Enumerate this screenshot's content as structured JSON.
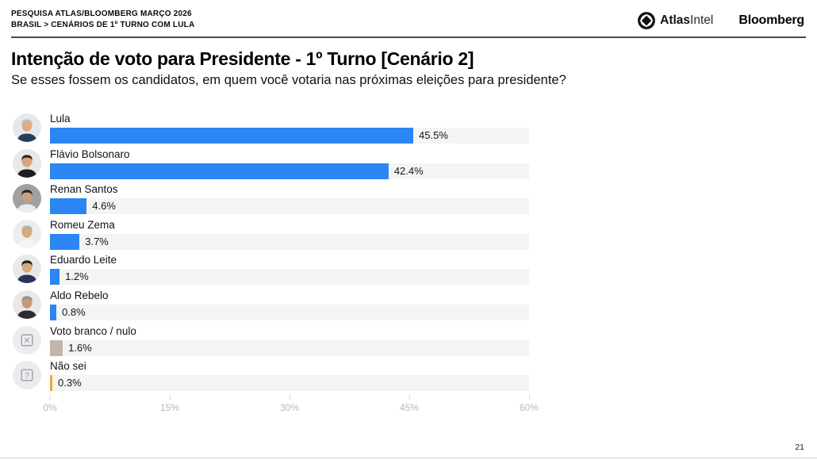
{
  "header": {
    "kicker_line1": "PESQUISA ATLAS/BLOOMBERG MARÇO 2026",
    "kicker_line2": "BRASIL > CENÁRIOS DE 1º TURNO COM LULA",
    "atlas_logo": {
      "bold": "Atlas",
      "light": "Intel"
    },
    "bloomberg_logo": "Bloomberg"
  },
  "title": "Intenção de voto para Presidente - 1º Turno [Cenário 2]",
  "subtitle": "Se esses fossem os candidatos, em quem você votaria nas próximas eleições para presidente?",
  "footer": {
    "page_number": "21"
  },
  "colors": {
    "bar_blue": "#2b86f3",
    "bar_tan": "#c4b5aa",
    "bar_orange": "#eba832",
    "track_gray": "#f4f4f2",
    "axis_text": "#b5b9c1"
  },
  "chart_data": {
    "type": "bar",
    "orientation": "horizontal",
    "title": "Intenção de voto para Presidente - 1º Turno [Cenário 2]",
    "xlabel": "",
    "ylabel": "",
    "xlim": [
      0,
      60
    ],
    "x_ticks": [
      {
        "value": 0,
        "label": "0%"
      },
      {
        "value": 15,
        "label": "15%"
      },
      {
        "value": 30,
        "label": "30%"
      },
      {
        "value": 45,
        "label": "45%"
      },
      {
        "value": 60,
        "label": "60%"
      }
    ],
    "categories": [
      "Lula",
      "Flávio Bolsonaro",
      "Renan Santos",
      "Romeu Zema",
      "Eduardo Leite",
      "Aldo Rebelo",
      "Voto branco / nulo",
      "Não sei"
    ],
    "values": [
      45.5,
      42.4,
      4.6,
      3.7,
      1.2,
      0.8,
      1.6,
      0.3
    ],
    "rows": [
      {
        "label": "Lula",
        "value": 45.5,
        "value_label": "45.5%",
        "color": "#2b86f3",
        "avatar": {
          "kind": "photo",
          "name": "lula-photo",
          "bg": "#e8e8e8",
          "hair": "#bdbdbd",
          "skin": "#e0ab87",
          "suit": "#21405f"
        }
      },
      {
        "label": "Flávio Bolsonaro",
        "value": 42.4,
        "value_label": "42.4%",
        "color": "#2b86f3",
        "avatar": {
          "kind": "photo",
          "name": "flavio-bolsonaro-photo",
          "bg": "#e8e8e8",
          "hair": "#33261c",
          "skin": "#d9a57f",
          "suit": "#1d1d22"
        }
      },
      {
        "label": "Renan Santos",
        "value": 4.6,
        "value_label": "4.6%",
        "color": "#2b86f3",
        "avatar": {
          "kind": "photo",
          "name": "renan-santos-photo",
          "bg": "#a0a0a0",
          "hair": "#2c241d",
          "skin": "#c9a07e",
          "suit": "#ececec"
        }
      },
      {
        "label": "Romeu Zema",
        "value": 3.7,
        "value_label": "3.7%",
        "color": "#2b86f3",
        "avatar": {
          "kind": "photo",
          "name": "romeu-zema-photo",
          "bg": "#ededed",
          "hair": "#b3b3b3",
          "skin": "#d8a880",
          "suit": "#f5f5f5"
        }
      },
      {
        "label": "Eduardo Leite",
        "value": 1.2,
        "value_label": "1.2%",
        "color": "#2b86f3",
        "avatar": {
          "kind": "photo",
          "name": "eduardo-leite-photo",
          "bg": "#e8e8e8",
          "hair": "#241c14",
          "skin": "#d8a880",
          "suit": "#27345a"
        }
      },
      {
        "label": "Aldo Rebelo",
        "value": 0.8,
        "value_label": "0.8%",
        "color": "#2b86f3",
        "avatar": {
          "kind": "photo",
          "name": "aldo-rebelo-photo",
          "bg": "#e8e8e8",
          "hair": "#8f8f8f",
          "skin": "#c79a74",
          "suit": "#2b2b30"
        }
      },
      {
        "label": "Voto branco / nulo",
        "value": 1.6,
        "value_label": "1.6%",
        "color": "#c4b5aa",
        "avatar": {
          "kind": "glyph",
          "name": "x-square-icon",
          "bg": "#ececee",
          "glyph": "✕"
        }
      },
      {
        "label": "Não sei",
        "value": 0.3,
        "value_label": "0.3%",
        "color": "#eba832",
        "avatar": {
          "kind": "glyph",
          "name": "question-square-icon",
          "bg": "#ececee",
          "glyph": "?"
        }
      }
    ]
  }
}
